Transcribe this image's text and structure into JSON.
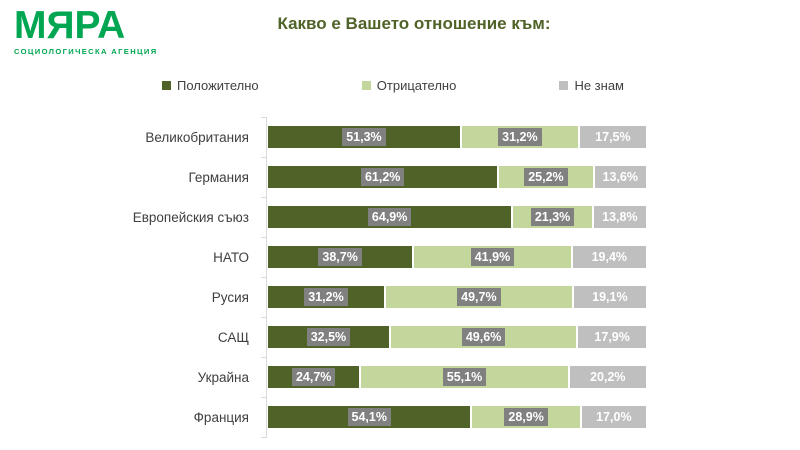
{
  "logo": {
    "name": "МЯРА",
    "tagline": "СОЦИОЛОГИЧЕСКА АГЕНЦИЯ",
    "color": "#00A651"
  },
  "title": "Какво е Вашето отношение към:",
  "title_color": "#4F6228",
  "legend": [
    {
      "label": "Положително",
      "color": "#4F6228"
    },
    {
      "label": "Отрицателно",
      "color": "#C3D69B"
    },
    {
      "label": "Не знам",
      "color": "#BFBFBF"
    }
  ],
  "chart_data": {
    "type": "bar",
    "orientation": "horizontal",
    "stacked": true,
    "unit": "%",
    "x_range": [
      0,
      100
    ],
    "grid": false,
    "legend_position": "top",
    "decimal_separator": ",",
    "title": "Какво е Вашето отношение към:",
    "categories": [
      "Великобритания",
      "Германия",
      "Европейския съюз",
      "НАТО",
      "Русия",
      "САЩ",
      "Украйна",
      "Франция"
    ],
    "series": [
      {
        "name": "Положително",
        "color": "#4F6228",
        "values": [
          51.3,
          61.2,
          64.9,
          38.7,
          31.2,
          32.5,
          24.7,
          54.1
        ]
      },
      {
        "name": "Отрицателно",
        "color": "#C3D69B",
        "values": [
          31.2,
          25.2,
          21.3,
          41.9,
          49.7,
          49.6,
          55.1,
          28.9
        ]
      },
      {
        "name": "Не знам",
        "color": "#BFBFBF",
        "values": [
          17.5,
          13.6,
          13.8,
          19.4,
          19.1,
          17.9,
          20.2,
          17.0
        ]
      }
    ],
    "data_labels": true,
    "label_colors": {
      "text": "#FFFFFF",
      "badge_background": "#808080"
    }
  }
}
